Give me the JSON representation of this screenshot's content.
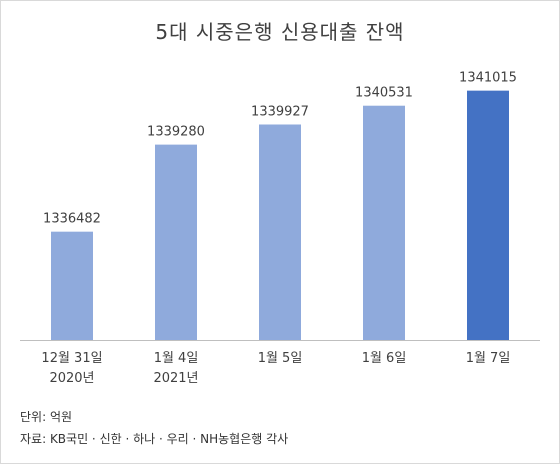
{
  "chart_data": {
    "type": "bar",
    "title": "5대 시중은행 신용대출 잔액",
    "categories": [
      [
        "12월 31일",
        "2020년"
      ],
      [
        "1월 4일",
        "2021년"
      ],
      [
        "1월 5일"
      ],
      [
        "1월 6일"
      ],
      [
        "1월 7일"
      ]
    ],
    "values": [
      1336482,
      1339280,
      1339927,
      1340531,
      1341015
    ],
    "value_labels": [
      "1336482",
      "1339280",
      "1339927",
      "1340531",
      "1341015"
    ],
    "ylim": [
      1333000,
      1342000
    ],
    "colors": {
      "bar": "#8faadc",
      "highlight": "#4472c4",
      "axis": "#bfbfbf",
      "label": "#404040"
    },
    "highlight_index": 4,
    "grid": false,
    "legend": "none"
  },
  "notes": {
    "unit": "단위: 억원",
    "source": "자료: KB국민 · 신한 · 하나 · 우리 · NH농협은행 각사"
  }
}
